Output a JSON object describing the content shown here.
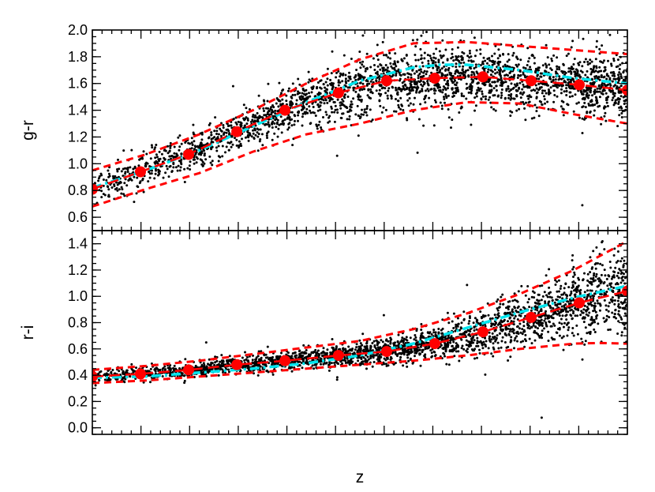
{
  "chart_data": {
    "type": "scatter",
    "xlabel": "z",
    "x_tick_labels_shown": false,
    "x_domain": [
      0.0,
      1.0
    ],
    "panels": [
      {
        "ylabel": "g-r",
        "ylim": [
          0.5,
          2.0
        ],
        "yticks": [
          0.6,
          0.8,
          1.0,
          1.2,
          1.4,
          1.6,
          1.8,
          2.0
        ],
        "ytick_labels": [
          "0.6",
          "0.8",
          "1.0",
          "1.2",
          "1.4",
          "1.6",
          "1.8",
          "2.0"
        ],
        "median_points": {
          "color": "#ff0000",
          "x": [
            0.0,
            0.09,
            0.18,
            0.27,
            0.36,
            0.46,
            0.55,
            0.64,
            0.73,
            0.82,
            0.91,
            1.0
          ],
          "y": [
            0.81,
            0.94,
            1.07,
            1.24,
            1.4,
            1.53,
            1.62,
            1.64,
            1.65,
            1.62,
            1.59,
            1.55
          ]
        },
        "upper_envelope": {
          "color": "#ff0000",
          "style": "dashed",
          "x": [
            0.0,
            0.1,
            0.2,
            0.3,
            0.4,
            0.5,
            0.6,
            0.7,
            0.8,
            0.9,
            1.0
          ],
          "y": [
            0.95,
            1.07,
            1.22,
            1.4,
            1.6,
            1.78,
            1.9,
            1.91,
            1.88,
            1.85,
            1.82
          ]
        },
        "lower_envelope": {
          "color": "#ff0000",
          "style": "dashed",
          "x": [
            0.0,
            0.1,
            0.2,
            0.3,
            0.4,
            0.5,
            0.6,
            0.7,
            0.8,
            0.9,
            1.0
          ],
          "y": [
            0.68,
            0.81,
            0.93,
            1.09,
            1.22,
            1.3,
            1.4,
            1.46,
            1.45,
            1.37,
            1.3
          ]
        },
        "model_curve": {
          "color": "#00e5ee",
          "style": "dash-dot",
          "x": [
            0.0,
            0.1,
            0.2,
            0.3,
            0.4,
            0.5,
            0.6,
            0.65,
            0.7,
            0.8,
            0.9,
            1.0
          ],
          "y": [
            0.82,
            0.95,
            1.1,
            1.28,
            1.46,
            1.62,
            1.72,
            1.74,
            1.74,
            1.7,
            1.64,
            1.6
          ]
        }
      },
      {
        "ylabel": "r-i",
        "ylim": [
          -0.05,
          1.5
        ],
        "yticks": [
          0.0,
          0.2,
          0.4,
          0.6,
          0.8,
          1.0,
          1.2,
          1.4
        ],
        "ytick_labels": [
          "0.0",
          "0.2",
          "0.4",
          "0.6",
          "0.8",
          "1.0",
          "1.2",
          "1.4"
        ],
        "median_points": {
          "color": "#ff0000",
          "x": [
            0.0,
            0.09,
            0.18,
            0.27,
            0.36,
            0.46,
            0.55,
            0.64,
            0.73,
            0.82,
            0.91,
            1.0
          ],
          "y": [
            0.39,
            0.41,
            0.44,
            0.48,
            0.51,
            0.55,
            0.58,
            0.64,
            0.73,
            0.84,
            0.95,
            1.04
          ]
        },
        "upper_envelope": {
          "color": "#ff0000",
          "style": "dashed",
          "x": [
            0.0,
            0.1,
            0.2,
            0.3,
            0.4,
            0.5,
            0.6,
            0.7,
            0.8,
            0.9,
            1.0
          ],
          "y": [
            0.44,
            0.47,
            0.51,
            0.56,
            0.61,
            0.66,
            0.75,
            0.87,
            1.02,
            1.2,
            1.42
          ]
        },
        "lower_envelope": {
          "color": "#ff0000",
          "style": "dashed",
          "x": [
            0.0,
            0.1,
            0.2,
            0.3,
            0.4,
            0.5,
            0.6,
            0.7,
            0.8,
            0.9,
            0.95,
            1.0
          ],
          "y": [
            0.34,
            0.36,
            0.39,
            0.42,
            0.45,
            0.48,
            0.51,
            0.55,
            0.6,
            0.64,
            0.645,
            0.64
          ]
        },
        "model_curve": {
          "color": "#00e5ee",
          "style": "dash-dot",
          "x": [
            0.0,
            0.1,
            0.2,
            0.3,
            0.4,
            0.5,
            0.6,
            0.7,
            0.8,
            0.9,
            1.0
          ],
          "y": [
            0.38,
            0.39,
            0.42,
            0.45,
            0.49,
            0.55,
            0.64,
            0.76,
            0.88,
            0.99,
            1.08
          ]
        }
      }
    ]
  }
}
